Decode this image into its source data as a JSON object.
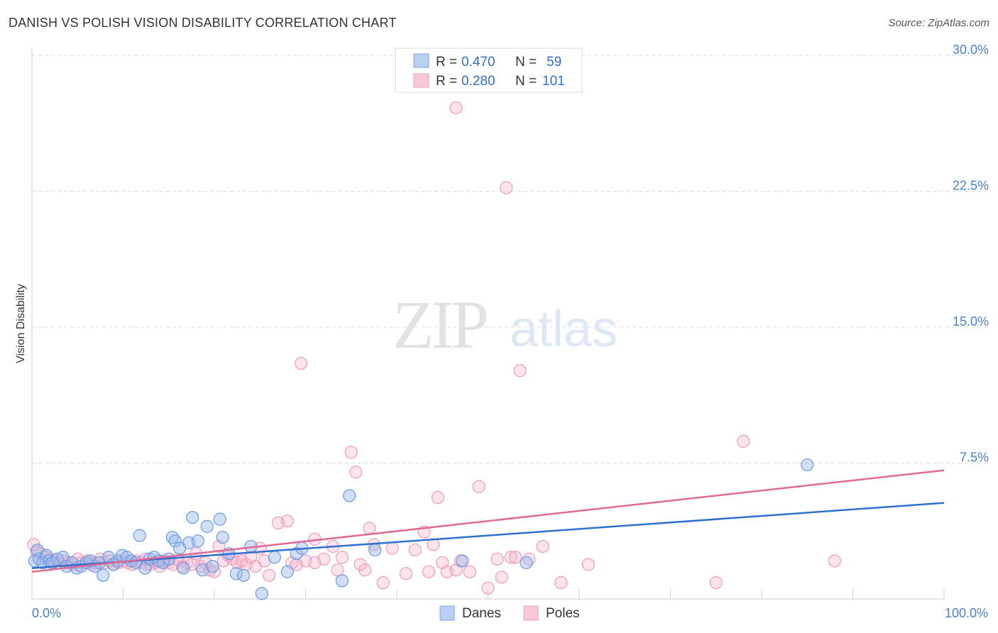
{
  "title": "DANISH VS POLISH VISION DISABILITY CORRELATION CHART",
  "source": "Source: ZipAtlas.com",
  "watermark": {
    "zip": "ZIP",
    "atlas": "atlas"
  },
  "legend_top": [
    {
      "r_label": "R =",
      "r_value": "0.470",
      "n_label": "N =",
      "n_value": "59",
      "color": "#7aa8e8",
      "fill": "#b9d0f2"
    },
    {
      "r_label": "R =",
      "r_value": "0.280",
      "n_label": "N =",
      "n_value": "101",
      "color": "#f0a0b8",
      "fill": "#f8c8d6"
    }
  ],
  "colors": {
    "danes_fill": "rgba(150,185,235,0.45)",
    "danes_stroke": "#6a9be0",
    "danes_line": "#2f6fd0",
    "poles_fill": "rgba(245,175,200,0.35)",
    "poles_stroke": "#ef9cb6",
    "poles_line": "#e06a95",
    "grid": "#dddddd",
    "tick_text": "#4a7fd0"
  },
  "chart_data": {
    "type": "scatter",
    "xlabel": "",
    "ylabel": "Vision Disability",
    "xlim": [
      0,
      100
    ],
    "ylim": [
      0,
      30
    ],
    "x_tick_labels": [
      {
        "value": 0,
        "label": "0.0%"
      },
      {
        "value": 100,
        "label": "100.0%"
      }
    ],
    "y_tick_labels": [
      {
        "value": 7.5,
        "label": "7.5%"
      },
      {
        "value": 15.0,
        "label": "15.0%"
      },
      {
        "value": 22.5,
        "label": "22.5%"
      },
      {
        "value": 30.0,
        "label": "30.0%"
      }
    ],
    "grid": true,
    "legend_position": "top-center",
    "series": [
      {
        "name": "Danes",
        "trend": [
          [
            0,
            1.7
          ],
          [
            100,
            5.3
          ]
        ],
        "points": [
          [
            0.3,
            2.1
          ],
          [
            0.6,
            2.7
          ],
          [
            0.8,
            2.2
          ],
          [
            1.2,
            2.0
          ],
          [
            1.6,
            2.4
          ],
          [
            1.9,
            2.1
          ],
          [
            2.2,
            2.0
          ],
          [
            2.8,
            2.2
          ],
          [
            3.4,
            2.3
          ],
          [
            3.8,
            1.8
          ],
          [
            4.4,
            2.0
          ],
          [
            4.9,
            1.7
          ],
          [
            5.4,
            1.8
          ],
          [
            6.0,
            2.0
          ],
          [
            6.4,
            2.1
          ],
          [
            6.9,
            1.8
          ],
          [
            7.4,
            2.0
          ],
          [
            7.8,
            1.3
          ],
          [
            8.4,
            2.3
          ],
          [
            8.9,
            1.9
          ],
          [
            9.4,
            2.1
          ],
          [
            9.9,
            2.4
          ],
          [
            10.4,
            2.3
          ],
          [
            10.9,
            2.1
          ],
          [
            11.4,
            2.0
          ],
          [
            11.8,
            3.5
          ],
          [
            12.4,
            1.7
          ],
          [
            12.9,
            2.2
          ],
          [
            13.4,
            2.3
          ],
          [
            13.9,
            2.1
          ],
          [
            14.4,
            2.0
          ],
          [
            15.0,
            2.2
          ],
          [
            15.4,
            3.4
          ],
          [
            15.7,
            3.2
          ],
          [
            16.2,
            2.8
          ],
          [
            16.6,
            1.7
          ],
          [
            17.2,
            3.1
          ],
          [
            17.6,
            4.5
          ],
          [
            18.2,
            3.2
          ],
          [
            18.7,
            1.6
          ],
          [
            19.2,
            4.0
          ],
          [
            19.8,
            1.8
          ],
          [
            20.6,
            4.4
          ],
          [
            20.9,
            3.4
          ],
          [
            21.6,
            2.5
          ],
          [
            22.4,
            1.4
          ],
          [
            23.2,
            1.3
          ],
          [
            24.0,
            2.9
          ],
          [
            25.2,
            0.3
          ],
          [
            26.6,
            2.3
          ],
          [
            28.0,
            1.5
          ],
          [
            29.0,
            2.5
          ],
          [
            29.6,
            2.8
          ],
          [
            34.0,
            1.0
          ],
          [
            34.8,
            5.7
          ],
          [
            37.6,
            2.7
          ],
          [
            47.2,
            2.1
          ],
          [
            54.2,
            2.0
          ],
          [
            85.0,
            7.4
          ]
        ]
      },
      {
        "name": "Poles",
        "trend": [
          [
            0,
            1.5
          ],
          [
            100,
            7.1
          ]
        ],
        "points": [
          [
            0.2,
            3.0
          ],
          [
            0.5,
            2.6
          ],
          [
            1.0,
            2.5
          ],
          [
            1.5,
            2.3
          ],
          [
            2.0,
            2.2
          ],
          [
            2.5,
            2.1
          ],
          [
            3.0,
            2.0
          ],
          [
            3.5,
            2.1
          ],
          [
            4.0,
            2.0
          ],
          [
            4.5,
            1.9
          ],
          [
            5.0,
            2.2
          ],
          [
            5.5,
            2.0
          ],
          [
            6.0,
            2.1
          ],
          [
            6.5,
            1.9
          ],
          [
            7.0,
            2.0
          ],
          [
            7.5,
            2.2
          ],
          [
            8.0,
            2.0
          ],
          [
            8.5,
            2.1
          ],
          [
            9.0,
            1.9
          ],
          [
            9.5,
            2.0
          ],
          [
            10.0,
            2.1
          ],
          [
            10.5,
            2.0
          ],
          [
            11.0,
            1.9
          ],
          [
            11.5,
            2.1
          ],
          [
            12.0,
            2.0
          ],
          [
            12.5,
            2.2
          ],
          [
            13.0,
            1.9
          ],
          [
            13.5,
            2.0
          ],
          [
            14.0,
            1.8
          ],
          [
            14.5,
            2.1
          ],
          [
            15.0,
            2.0
          ],
          [
            15.5,
            1.9
          ],
          [
            16.0,
            2.2
          ],
          [
            16.5,
            1.8
          ],
          [
            17.0,
            2.0
          ],
          [
            17.5,
            1.9
          ],
          [
            18.0,
            2.5
          ],
          [
            18.5,
            1.8
          ],
          [
            19.0,
            2.0
          ],
          [
            19.5,
            1.6
          ],
          [
            20.0,
            1.5
          ],
          [
            20.5,
            2.9
          ],
          [
            21.0,
            2.1
          ],
          [
            21.5,
            2.4
          ],
          [
            22.0,
            2.2
          ],
          [
            22.5,
            2.0
          ],
          [
            23.0,
            2.1
          ],
          [
            23.5,
            1.9
          ],
          [
            24.0,
            2.3
          ],
          [
            24.5,
            1.8
          ],
          [
            25.0,
            2.8
          ],
          [
            25.5,
            2.1
          ],
          [
            26.0,
            1.3
          ],
          [
            27.0,
            4.2
          ],
          [
            28.0,
            4.3
          ],
          [
            28.5,
            2.0
          ],
          [
            29.0,
            1.9
          ],
          [
            30.0,
            2.1
          ],
          [
            31.0,
            3.3
          ],
          [
            32.0,
            2.2
          ],
          [
            33.0,
            2.9
          ],
          [
            33.5,
            1.6
          ],
          [
            34.0,
            2.3
          ],
          [
            35.0,
            8.1
          ],
          [
            35.5,
            7.0
          ],
          [
            36.5,
            1.6
          ],
          [
            37.0,
            3.9
          ],
          [
            37.5,
            3.0
          ],
          [
            38.5,
            0.9
          ],
          [
            39.5,
            2.8
          ],
          [
            41.0,
            1.4
          ],
          [
            42.0,
            2.7
          ],
          [
            43.0,
            3.7
          ],
          [
            43.5,
            1.5
          ],
          [
            44.5,
            5.6
          ],
          [
            45.0,
            2.0
          ],
          [
            45.5,
            1.5
          ],
          [
            46.5,
            1.6
          ],
          [
            47.0,
            2.1
          ],
          [
            48.0,
            1.5
          ],
          [
            49.0,
            6.2
          ],
          [
            50.0,
            0.6
          ],
          [
            51.0,
            2.2
          ],
          [
            51.5,
            1.2
          ],
          [
            52.5,
            2.3
          ],
          [
            53.0,
            2.3
          ],
          [
            54.5,
            2.2
          ],
          [
            56.0,
            2.9
          ],
          [
            58.0,
            0.9
          ],
          [
            61.0,
            1.9
          ],
          [
            75.0,
            0.9
          ],
          [
            78.0,
            8.7
          ],
          [
            88.0,
            2.1
          ],
          [
            29.5,
            13.0
          ],
          [
            53.5,
            12.6
          ],
          [
            46.5,
            27.1
          ],
          [
            52.0,
            22.7
          ],
          [
            31.0,
            2.0
          ],
          [
            36.0,
            1.9
          ],
          [
            44.0,
            3.0
          ],
          [
            12.6,
            1.9
          ]
        ]
      }
    ]
  }
}
